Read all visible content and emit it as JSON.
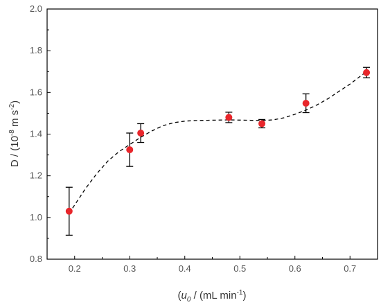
{
  "chart_data": {
    "type": "scatter",
    "title": "",
    "xlabel": {
      "prefix": "(",
      "var": "u",
      "sub": "0",
      "mid": " / (mL min",
      "sup": "-1",
      "suffix": ")"
    },
    "ylabel": {
      "prefix": "D / (10",
      "sup1": "-8",
      "mid": " m s",
      "sup2": "-2",
      "suffix": ")"
    },
    "xlim": [
      0.15,
      0.75
    ],
    "ylim": [
      0.8,
      2.0
    ],
    "xticks": [
      0.2,
      0.3,
      0.4,
      0.5,
      0.6,
      0.7
    ],
    "xtick_labels": [
      "0.2",
      "0.3",
      "0.4",
      "0.5",
      "0.6",
      "0.7"
    ],
    "yticks": [
      0.8,
      1.0,
      1.2,
      1.4,
      1.6,
      1.8,
      2.0
    ],
    "ytick_labels": [
      "0.8",
      "1.0",
      "1.2",
      "1.4",
      "1.6",
      "1.8",
      "2.0"
    ],
    "grid": false,
    "series": [
      {
        "x": [
          0.19,
          0.3,
          0.32,
          0.48,
          0.54,
          0.62,
          0.73
        ],
        "y": [
          1.03,
          1.325,
          1.405,
          1.48,
          1.45,
          1.548,
          1.695
        ],
        "yerr": [
          0.115,
          0.08,
          0.045,
          0.025,
          0.02,
          0.045,
          0.025
        ],
        "color": "#e8262b"
      }
    ],
    "fit": {
      "style": "dashed",
      "color": "#000000",
      "x": [
        0.19,
        0.2,
        0.22,
        0.24,
        0.26,
        0.28,
        0.3,
        0.32,
        0.34,
        0.36,
        0.38,
        0.4,
        0.42,
        0.44,
        0.46,
        0.48,
        0.5,
        0.52,
        0.54,
        0.56,
        0.58,
        0.6,
        0.62,
        0.64,
        0.66,
        0.68,
        0.7,
        0.72,
        0.73
      ],
      "y": [
        1.02,
        1.06,
        1.14,
        1.21,
        1.27,
        1.315,
        1.35,
        1.385,
        1.415,
        1.44,
        1.455,
        1.462,
        1.465,
        1.466,
        1.467,
        1.468,
        1.467,
        1.466,
        1.465,
        1.468,
        1.478,
        1.495,
        1.515,
        1.54,
        1.57,
        1.605,
        1.64,
        1.68,
        1.7
      ]
    }
  }
}
